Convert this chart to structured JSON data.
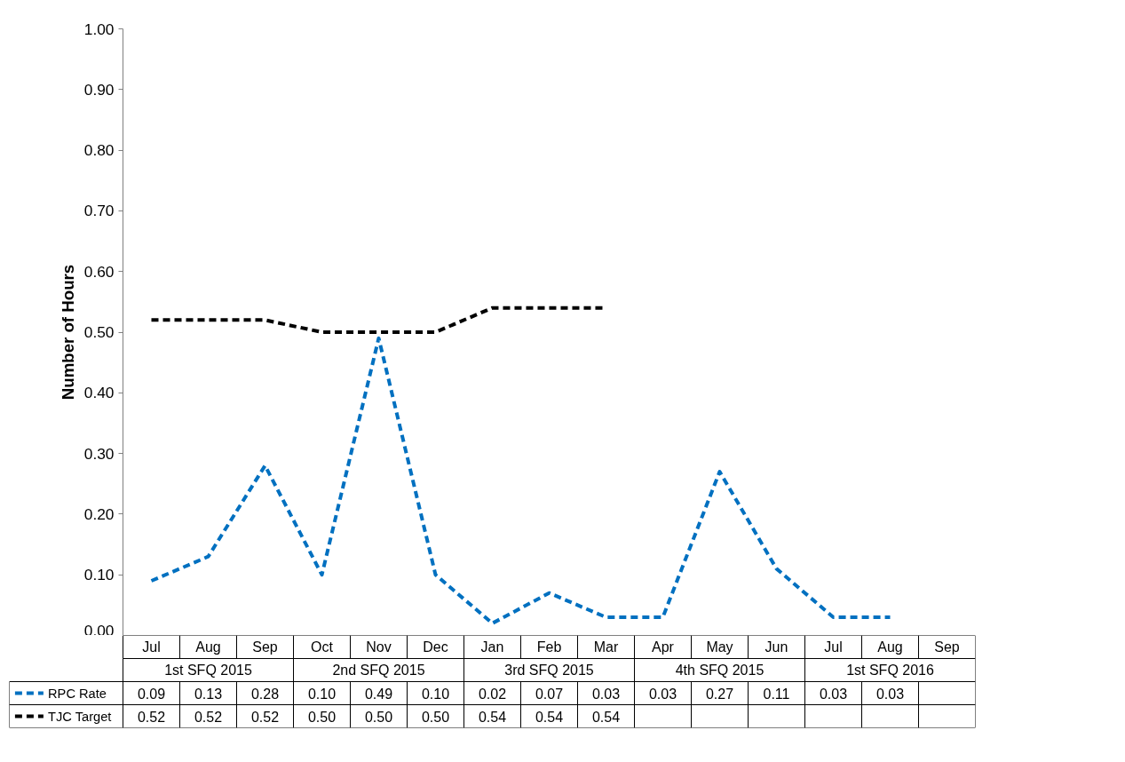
{
  "chart_data": {
    "type": "line",
    "ylabel": "Number of Hours",
    "categories": [
      "Jul",
      "Aug",
      "Sep",
      "Oct",
      "Nov",
      "Dec",
      "Jan",
      "Feb",
      "Mar",
      "Apr",
      "May",
      "Jun",
      "Jul",
      "Aug",
      "Sep"
    ],
    "annotations": [
      "1st SFQ 2015",
      "2nd SFQ 2015",
      "3rd SFQ 2015",
      "4th SFQ 2015",
      "1st SFQ 2016"
    ],
    "series": [
      {
        "name": "RPC Rate",
        "color": "#0070c0",
        "values": [
          0.09,
          0.13,
          0.28,
          0.1,
          0.49,
          0.1,
          0.02,
          0.07,
          0.03,
          0.03,
          0.27,
          0.11,
          0.03,
          0.03,
          null
        ],
        "value_labels": [
          "0.09",
          "0.13",
          "0.28",
          "0.10",
          "0.49",
          "0.10",
          "0.02",
          "0.07",
          "0.03",
          "0.03",
          "0.27",
          "0.11",
          "0.03",
          "0.03",
          null
        ]
      },
      {
        "name": "TJC Target",
        "color": "#000000",
        "values": [
          0.52,
          0.52,
          0.52,
          0.5,
          0.5,
          0.5,
          0.54,
          0.54,
          0.54,
          null,
          null,
          null,
          null,
          null,
          null
        ],
        "value_labels": [
          "0.52",
          "0.52",
          "0.52",
          "0.50",
          "0.50",
          "0.50",
          "0.54",
          "0.54",
          "0.54",
          null,
          null,
          null,
          null,
          null,
          null
        ]
      }
    ],
    "ylim": [
      0,
      1
    ],
    "yticks": [
      {
        "value": 0,
        "label": "0.00"
      },
      {
        "value": 0.1,
        "label": "0.10"
      },
      {
        "value": 0.2,
        "label": "0.20"
      },
      {
        "value": 0.3,
        "label": "0.30"
      },
      {
        "value": 0.4,
        "label": "0.40"
      },
      {
        "value": 0.5,
        "label": "0.50"
      },
      {
        "value": 0.6,
        "label": "0.60"
      },
      {
        "value": 0.7,
        "label": "0.70"
      },
      {
        "value": 0.8,
        "label": "0.80"
      },
      {
        "value": 0.9,
        "label": "0.90"
      },
      {
        "value": 1,
        "label": "1.00"
      }
    ],
    "line_style": "dashed",
    "marker": "none",
    "grid": false,
    "legend": "bottom"
  }
}
